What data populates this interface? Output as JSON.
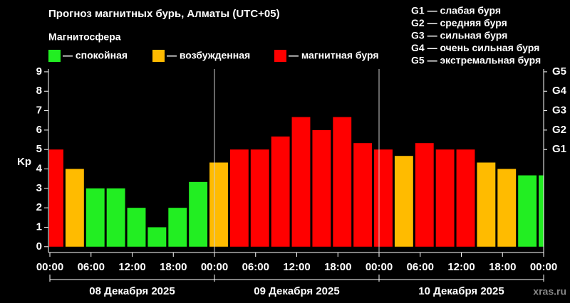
{
  "chart_data": {
    "type": "bar",
    "title": "Прогноз магнитных бурь, Алматы (UTC+05)",
    "subtitle": "Магнитосфера",
    "y_label": "Kp",
    "legend": [
      {
        "name": "— спокойная",
        "color": "#22ee22"
      },
      {
        "name": "— возбужденная",
        "color": "#ffbb00"
      },
      {
        "name": "— магнитная буря",
        "color": "#ff0000"
      }
    ],
    "storm_legend": [
      "G1 — слабая буря",
      "G2 — средняя буря",
      "G3 — сильная буря",
      "G4 — очень сильная буря",
      "G5 — экстремальная буря"
    ],
    "x": [
      0,
      3,
      6,
      9,
      12,
      15,
      18,
      21,
      24,
      27,
      30,
      33,
      36,
      39,
      42,
      45,
      48,
      51,
      54,
      57,
      60,
      63,
      66,
      69,
      72
    ],
    "values": [
      5,
      4,
      3,
      3,
      2,
      1,
      2,
      3.33,
      4.33,
      5,
      5,
      5.67,
      6.67,
      6,
      6.67,
      5.33,
      5,
      4.67,
      5.33,
      5,
      5,
      4.33,
      4,
      3.67,
      3.67
    ],
    "colors": [
      "#ff0000",
      "#ffbb00",
      "#22ee22",
      "#22ee22",
      "#22ee22",
      "#22ee22",
      "#22ee22",
      "#22ee22",
      "#ffbb00",
      "#ff0000",
      "#ff0000",
      "#ff0000",
      "#ff0000",
      "#ff0000",
      "#ff0000",
      "#ff0000",
      "#ff0000",
      "#ffbb00",
      "#ff0000",
      "#ff0000",
      "#ff0000",
      "#ffbb00",
      "#ffbb00",
      "#22ee22",
      "#22ee22"
    ],
    "xlim": [
      0,
      72
    ],
    "xticks": [
      {
        "value": 0,
        "label": "00:00"
      },
      {
        "value": 6,
        "label": "06:00"
      },
      {
        "value": 12,
        "label": "12:00"
      },
      {
        "value": 18,
        "label": "18:00"
      },
      {
        "value": 24,
        "label": "00:00"
      },
      {
        "value": 30,
        "label": "06:00"
      },
      {
        "value": 36,
        "label": "12:00"
      },
      {
        "value": 42,
        "label": "18:00"
      },
      {
        "value": 48,
        "label": "00:00"
      },
      {
        "value": 54,
        "label": "06:00"
      },
      {
        "value": 60,
        "label": "12:00"
      },
      {
        "value": 66,
        "label": "18:00"
      },
      {
        "value": 72,
        "label": "00:00"
      }
    ],
    "day_labels": [
      "08 Декабря 2025",
      "09 Декабря 2025",
      "10 Декабря 2025"
    ],
    "ylim": [
      -0.3,
      9.4
    ],
    "yticks": [
      0,
      1,
      2,
      3,
      4,
      5,
      6,
      7,
      8,
      9
    ],
    "y2lim": [
      -0.3,
      9.4
    ],
    "y2ticks": [
      {
        "value": 5,
        "label": "G1"
      },
      {
        "value": 6,
        "label": "G2"
      },
      {
        "value": 7,
        "label": "G3"
      },
      {
        "value": 8,
        "label": "G4"
      },
      {
        "value": 9,
        "label": "G5"
      }
    ],
    "watermark": "xras.ru"
  }
}
